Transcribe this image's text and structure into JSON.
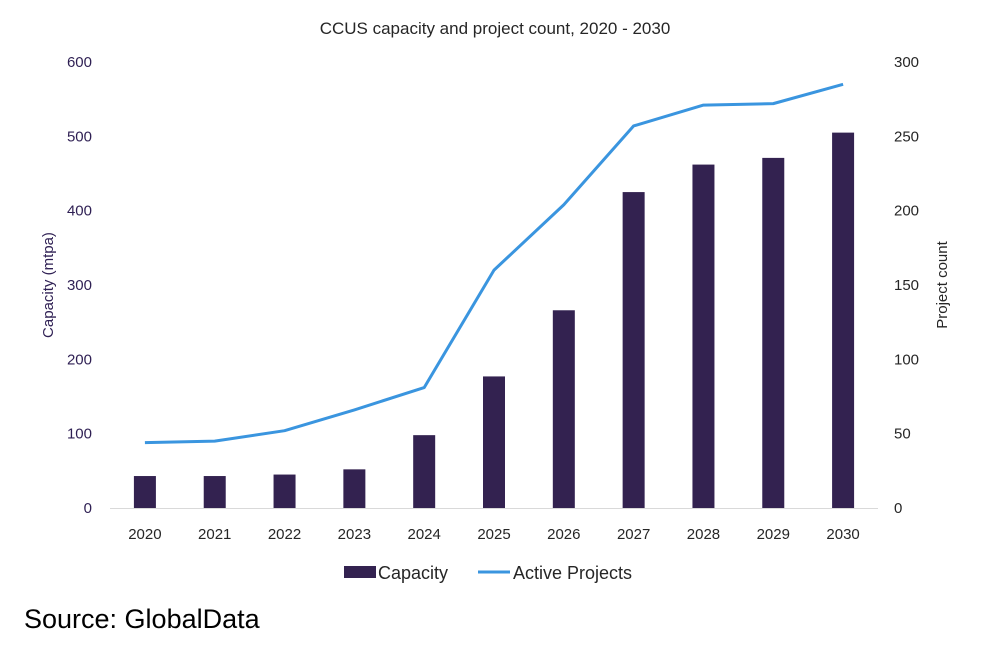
{
  "source_note": "Source: GlobalData",
  "colors": {
    "bar": "#332250",
    "line": "#3a95df",
    "left_axis": "#2e1f53"
  },
  "chart_data": {
    "type": "bar",
    "title": "CCUS capacity and project count, 2020 - 2030",
    "categories": [
      "2020",
      "2021",
      "2022",
      "2023",
      "2024",
      "2025",
      "2026",
      "2027",
      "2028",
      "2029",
      "2030"
    ],
    "series": [
      {
        "name": "Capacity",
        "type": "bar",
        "axis": "left",
        "values": [
          43,
          43,
          45,
          52,
          98,
          177,
          266,
          425,
          462,
          471,
          505
        ]
      },
      {
        "name": "Active Projects",
        "type": "line",
        "axis": "right",
        "values": [
          44,
          45,
          52,
          66,
          81,
          160,
          204,
          257,
          271,
          272,
          285
        ]
      }
    ],
    "ylabel": "Capacity (mtpa)",
    "ylim": [
      0,
      600
    ],
    "yticks": [
      "0",
      "100",
      "200",
      "300",
      "400",
      "500",
      "600"
    ],
    "y2label": "Project count",
    "y2lim": [
      0,
      300
    ],
    "y2ticks": [
      "0",
      "50",
      "100",
      "150",
      "200",
      "250",
      "300"
    ],
    "grid": false,
    "legend": "bottom"
  }
}
